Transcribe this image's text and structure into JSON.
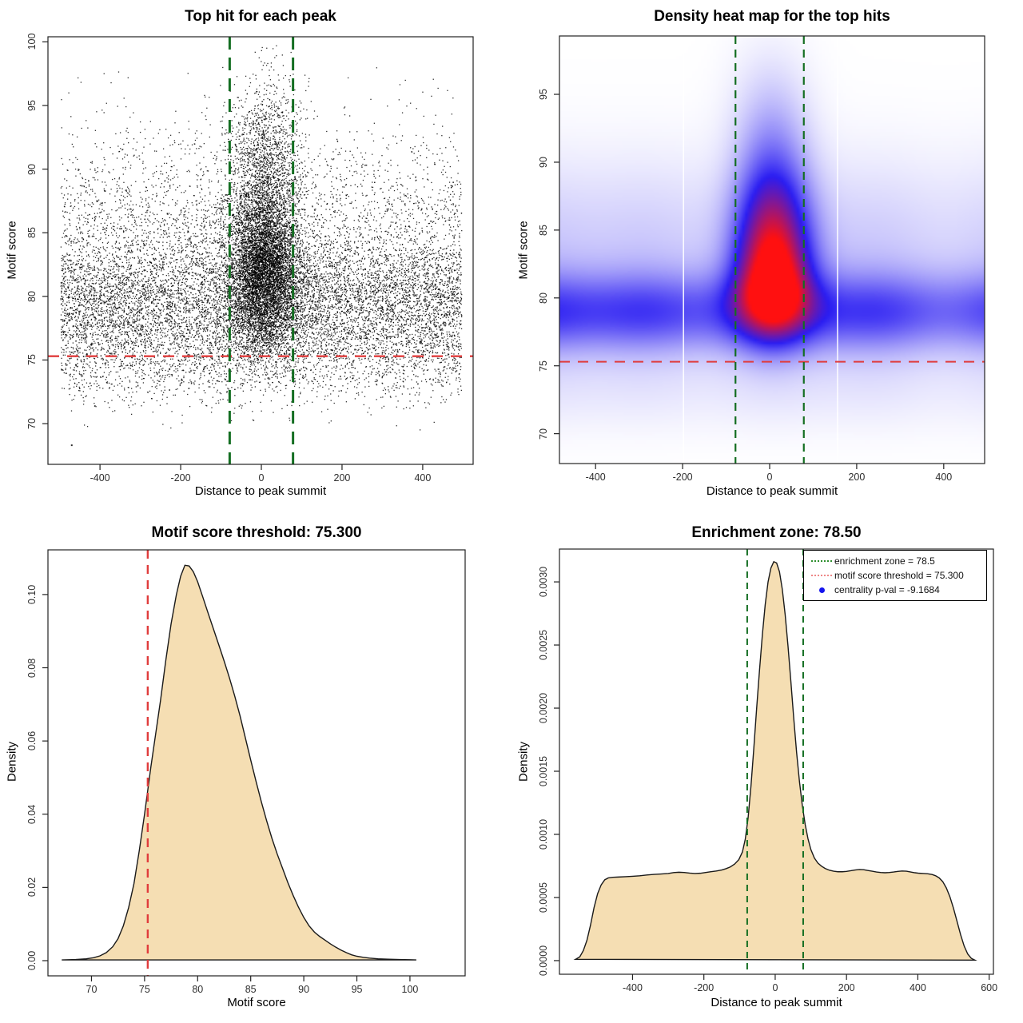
{
  "page": {
    "background": "#ffffff"
  },
  "colors": {
    "threshold_red": "#e03c3c",
    "enrichment_green": "#146e22",
    "density_fill": "#f5deb3",
    "curve_stroke": "#1a1a1a",
    "point_black": "#000000",
    "heat_white": "#ffffff",
    "heat_blue": "#2a1df2",
    "heat_red": "#ff1010"
  },
  "chart_data": [
    {
      "id": "top-hit-scatter",
      "type": "scatter",
      "title": "Top hit for each peak",
      "xlabel": "Distance to peak summit",
      "ylabel": "Motif score",
      "xlim": [
        -529,
        525
      ],
      "ylim": [
        66.8,
        100.4
      ],
      "xticks": [
        {
          "v": -400,
          "label": "-400"
        },
        {
          "v": -200,
          "label": "-200"
        },
        {
          "v": 0,
          "label": "0"
        },
        {
          "v": 200,
          "label": "200"
        },
        {
          "v": 400,
          "label": "400"
        }
      ],
      "yticks": [
        {
          "v": 70,
          "label": "70"
        },
        {
          "v": 75,
          "label": "75"
        },
        {
          "v": 80,
          "label": "80"
        },
        {
          "v": 85,
          "label": "85"
        },
        {
          "v": 90,
          "label": "90"
        },
        {
          "v": 95,
          "label": "95"
        },
        {
          "v": 100,
          "label": "100"
        }
      ],
      "ref_lines": [
        {
          "orient": "h",
          "value": 75.3,
          "color": "#e03c3c",
          "width": 2.4,
          "dash": [
            14,
            10
          ],
          "meaning": "motif score threshold = 75.300"
        },
        {
          "orient": "v",
          "value": -78.5,
          "color": "#146e22",
          "width": 3,
          "dash": [
            16,
            10
          ],
          "meaning": "enrichment zone = 78.5"
        },
        {
          "orient": "v",
          "value": 78.5,
          "color": "#146e22",
          "width": 3,
          "dash": [
            16,
            10
          ],
          "meaning": "enrichment zone = 78.5"
        }
      ],
      "points": {
        "seed": 42,
        "size": 1.3,
        "alpha": 0.82,
        "background": {
          "n": 12500,
          "x_uniform": [
            -497,
            497
          ],
          "y_mix": [
            {
              "w": 0.57,
              "mu": 79.2,
              "sd": 2.6
            },
            {
              "w": 0.27,
              "mu": 83.0,
              "sd": 4.0
            },
            {
              "w": 0.06,
              "mu": 88.5,
              "sd": 3.5
            },
            {
              "w": 0.1,
              "mu": 74.6,
              "sd": 1.7
            }
          ],
          "y_reject_below": 69.5,
          "y_reject_above": 99.3
        },
        "cluster": {
          "n": 8500,
          "x_normal": {
            "mu": 8,
            "sd": 45
          },
          "y_mix": [
            {
              "w": 0.66,
              "mu": 81.5,
              "sd": 3.0
            },
            {
              "w": 0.24,
              "mu": 86.0,
              "sd": 4.0
            },
            {
              "w": 0.1,
              "mu": 91.5,
              "sd": 3.2
            }
          ],
          "y_reject_below": 72.5,
          "y_reject_above": 99.8
        },
        "outliers": [
          [
            -470,
            68.3
          ]
        ]
      }
    },
    {
      "id": "top-hit-heatmap",
      "type": "density2d",
      "title": "Density heat map for the top hits",
      "xlabel": "Distance to peak summit",
      "ylabel": "Motif score",
      "xlim": [
        -483,
        494
      ],
      "ylim": [
        67.8,
        99.3
      ],
      "xticks": [
        {
          "v": -400,
          "label": "-400"
        },
        {
          "v": -200,
          "label": "-200"
        },
        {
          "v": 0,
          "label": "0"
        },
        {
          "v": 200,
          "label": "200"
        },
        {
          "v": 400,
          "label": "400"
        }
      ],
      "yticks": [
        {
          "v": 70,
          "label": "70"
        },
        {
          "v": 75,
          "label": "75"
        },
        {
          "v": 80,
          "label": "80"
        },
        {
          "v": 85,
          "label": "85"
        },
        {
          "v": 90,
          "label": "90"
        },
        {
          "v": 95,
          "label": "95"
        }
      ],
      "ref_lines": [
        {
          "orient": "h",
          "value": 75.3,
          "color": "#e03c3c",
          "width": 2,
          "dash": [
            13,
            10
          ],
          "meaning": "motif score threshold = 75.300"
        },
        {
          "orient": "v",
          "value": -78.5,
          "color": "#146e22",
          "width": 2.2,
          "dash": [
            10,
            7
          ],
          "meaning": "enrichment zone = 78.5"
        },
        {
          "orient": "v",
          "value": 78.5,
          "color": "#146e22",
          "width": 2.2,
          "dash": [
            10,
            7
          ],
          "meaning": "enrichment zone = 78.5"
        }
      ],
      "field": {
        "bands": [
          {
            "a": 0.52,
            "mu": 78.9,
            "sd": 2.0
          },
          {
            "a": 0.16,
            "mu": 83.5,
            "sd": 4.6
          },
          {
            "a": 0.07,
            "mu": 73.5,
            "sd": 2.3
          }
        ],
        "bandmod": [
          {
            "c": 0.1,
            "f": 97,
            "p": 0.3
          },
          {
            "c": 0.06,
            "f": 43,
            "p": 1.7
          },
          {
            "c": 0.05,
            "f": 160,
            "p": 2.6
          }
        ],
        "blobs": [
          {
            "a": 1.5,
            "cx": 8,
            "sx": 58,
            "cy": 81.2,
            "syUp": 4.4,
            "syDn": 2.6
          },
          {
            "a": 0.3,
            "cx": 5,
            "sx": 56,
            "cy": 88.5,
            "syUp": 3.8,
            "syDn": 3.0
          },
          {
            "a": 0.1,
            "cx": 2,
            "sx": 64,
            "cy": 94.0,
            "syUp": 3.5,
            "syDn": 3.0
          }
        ],
        "norm": 1.45,
        "white_gaps": [
          -198,
          156
        ]
      },
      "colormap": [
        "#ffffff",
        "#2a1df2",
        "#ff1010"
      ]
    },
    {
      "id": "motif-score-density",
      "type": "density",
      "title": "Motif score threshold: 75.300",
      "xlabel": "Motif score",
      "ylabel": "Density",
      "xlim": [
        65.9,
        105.2
      ],
      "ylim": [
        -0.00415,
        0.1122
      ],
      "xticks": [
        {
          "v": 70,
          "label": "70"
        },
        {
          "v": 75,
          "label": "75"
        },
        {
          "v": 80,
          "label": "80"
        },
        {
          "v": 85,
          "label": "85"
        },
        {
          "v": 90,
          "label": "90"
        },
        {
          "v": 95,
          "label": "95"
        },
        {
          "v": 100,
          "label": "100"
        }
      ],
      "yticks": [
        {
          "v": 0,
          "label": "0.00"
        },
        {
          "v": 0.02,
          "label": "0.02"
        },
        {
          "v": 0.04,
          "label": "0.04"
        },
        {
          "v": 0.06,
          "label": "0.06"
        },
        {
          "v": 0.08,
          "label": "0.08"
        },
        {
          "v": 0.1,
          "label": "0.10"
        }
      ],
      "fill": "#f5deb3",
      "stroke": "#1a1a1a",
      "ref_lines": [
        {
          "orient": "v",
          "value": 75.3,
          "color": "#e03c3c",
          "width": 2.4,
          "dash": [
            11,
            8
          ],
          "meaning": "motif score threshold = 75.300"
        }
      ],
      "curve": [
        [
          67.2,
          0.0002
        ],
        [
          68.5,
          0.0003
        ],
        [
          69.5,
          0.0005
        ],
        [
          70.2,
          0.0008
        ],
        [
          70.8,
          0.0013
        ],
        [
          71.4,
          0.0022
        ],
        [
          72.0,
          0.0038
        ],
        [
          72.5,
          0.006
        ],
        [
          73.0,
          0.0095
        ],
        [
          73.5,
          0.0145
        ],
        [
          74.0,
          0.021
        ],
        [
          74.5,
          0.03
        ],
        [
          75.0,
          0.04
        ],
        [
          75.3,
          0.0465
        ],
        [
          75.6,
          0.053
        ],
        [
          76.0,
          0.061
        ],
        [
          76.5,
          0.071
        ],
        [
          77.0,
          0.082
        ],
        [
          77.5,
          0.092
        ],
        [
          78.0,
          0.1
        ],
        [
          78.4,
          0.105
        ],
        [
          78.8,
          0.108
        ],
        [
          79.2,
          0.1078
        ],
        [
          79.6,
          0.1062
        ],
        [
          80.0,
          0.1035
        ],
        [
          80.5,
          0.0992
        ],
        [
          81.0,
          0.0948
        ],
        [
          81.5,
          0.0905
        ],
        [
          82.0,
          0.0862
        ],
        [
          82.5,
          0.0818
        ],
        [
          83.0,
          0.0772
        ],
        [
          83.5,
          0.0722
        ],
        [
          84.0,
          0.0668
        ],
        [
          84.5,
          0.0608
        ],
        [
          85.0,
          0.0548
        ],
        [
          85.5,
          0.049
        ],
        [
          86.0,
          0.0434
        ],
        [
          86.5,
          0.0382
        ],
        [
          87.0,
          0.0334
        ],
        [
          87.5,
          0.0291
        ],
        [
          88.0,
          0.0252
        ],
        [
          88.5,
          0.0213
        ],
        [
          89.0,
          0.0178
        ],
        [
          89.5,
          0.0146
        ],
        [
          90.0,
          0.0118
        ],
        [
          90.5,
          0.0095
        ],
        [
          91.0,
          0.0078
        ],
        [
          91.5,
          0.0066
        ],
        [
          92.0,
          0.0056
        ],
        [
          92.5,
          0.0046
        ],
        [
          93.0,
          0.0037
        ],
        [
          93.5,
          0.0029
        ],
        [
          94.0,
          0.0022
        ],
        [
          94.5,
          0.0016
        ],
        [
          95.0,
          0.0012
        ],
        [
          95.6,
          0.0009
        ],
        [
          96.2,
          0.0007
        ],
        [
          97.0,
          0.0005
        ],
        [
          98.0,
          0.0004
        ],
        [
          99.0,
          0.0003
        ],
        [
          100.0,
          0.00025
        ],
        [
          100.6,
          0.0002
        ]
      ]
    },
    {
      "id": "distance-density",
      "type": "density",
      "title": "Enrichment zone: 78.50",
      "xlabel": "Distance to peak summit",
      "ylabel": "Density",
      "xlim": [
        -605,
        612
      ],
      "ylim": [
        -0.000108,
        0.00326
      ],
      "xticks": [
        {
          "v": -400,
          "label": "-400"
        },
        {
          "v": -200,
          "label": "-200"
        },
        {
          "v": 0,
          "label": "0"
        },
        {
          "v": 200,
          "label": "200"
        },
        {
          "v": 400,
          "label": "400"
        },
        {
          "v": 600,
          "label": "600"
        }
      ],
      "yticks": [
        {
          "v": 0,
          "label": "0.0000"
        },
        {
          "v": 0.0005,
          "label": "0.0005"
        },
        {
          "v": 0.001,
          "label": "0.0010"
        },
        {
          "v": 0.0015,
          "label": "0.0015"
        },
        {
          "v": 0.002,
          "label": "0.0020"
        },
        {
          "v": 0.0025,
          "label": "0.0025"
        },
        {
          "v": 0.003,
          "label": "0.0030"
        }
      ],
      "fill": "#f5deb3",
      "stroke": "#1a1a1a",
      "ref_lines": [
        {
          "orient": "v",
          "value": -78.5,
          "color": "#146e22",
          "width": 2,
          "dash": [
            8,
            6
          ],
          "meaning": "enrichment zone = 78.5"
        },
        {
          "orient": "v",
          "value": 78.5,
          "color": "#146e22",
          "width": 2,
          "dash": [
            8,
            6
          ],
          "meaning": "enrichment zone = 78.5"
        }
      ],
      "curve": [
        [
          -560,
          1e-05
        ],
        [
          -548,
          3e-05
        ],
        [
          -538,
          8e-05
        ],
        [
          -528,
          0.00016
        ],
        [
          -518,
          0.00028
        ],
        [
          -508,
          0.00042
        ],
        [
          -498,
          0.00053
        ],
        [
          -488,
          0.0006
        ],
        [
          -478,
          0.00064
        ],
        [
          -468,
          0.000655
        ],
        [
          -455,
          0.00066
        ],
        [
          -440,
          0.000662
        ],
        [
          -420,
          0.000665
        ],
        [
          -400,
          0.000668
        ],
        [
          -380,
          0.000672
        ],
        [
          -360,
          0.000678
        ],
        [
          -340,
          0.000683
        ],
        [
          -320,
          0.000686
        ],
        [
          -300,
          0.00069
        ],
        [
          -285,
          0.000697
        ],
        [
          -270,
          0.0007
        ],
        [
          -255,
          0.000698
        ],
        [
          -240,
          0.000693
        ],
        [
          -225,
          0.00069
        ],
        [
          -210,
          0.000692
        ],
        [
          -195,
          0.000698
        ],
        [
          -180,
          0.000704
        ],
        [
          -165,
          0.00071
        ],
        [
          -150,
          0.000718
        ],
        [
          -138,
          0.000728
        ],
        [
          -126,
          0.000742
        ],
        [
          -114,
          0.000764
        ],
        [
          -102,
          0.0008
        ],
        [
          -92,
          0.00086
        ],
        [
          -84,
          0.00096
        ],
        [
          -76,
          0.00113
        ],
        [
          -68,
          0.00138
        ],
        [
          -60,
          0.00168
        ],
        [
          -52,
          0.002
        ],
        [
          -44,
          0.0023
        ],
        [
          -36,
          0.00258
        ],
        [
          -28,
          0.00282
        ],
        [
          -20,
          0.003
        ],
        [
          -12,
          0.00311
        ],
        [
          -4,
          0.00316
        ],
        [
          4,
          0.00315
        ],
        [
          12,
          0.00308
        ],
        [
          20,
          0.00294
        ],
        [
          28,
          0.00274
        ],
        [
          36,
          0.00249
        ],
        [
          44,
          0.00221
        ],
        [
          52,
          0.00192
        ],
        [
          60,
          0.00165
        ],
        [
          68,
          0.00142
        ],
        [
          76,
          0.00123
        ],
        [
          84,
          0.00108
        ],
        [
          92,
          0.000965
        ],
        [
          100,
          0.00088
        ],
        [
          110,
          0.000812
        ],
        [
          120,
          0.000772
        ],
        [
          130,
          0.000748
        ],
        [
          140,
          0.00073
        ],
        [
          152,
          0.000716
        ],
        [
          164,
          0.000708
        ],
        [
          176,
          0.000704
        ],
        [
          188,
          0.000704
        ],
        [
          200,
          0.000707
        ],
        [
          212,
          0.000712
        ],
        [
          224,
          0.000718
        ],
        [
          236,
          0.000722
        ],
        [
          248,
          0.00072
        ],
        [
          260,
          0.000714
        ],
        [
          272,
          0.000708
        ],
        [
          284,
          0.000702
        ],
        [
          296,
          0.000698
        ],
        [
          308,
          0.000696
        ],
        [
          320,
          0.000698
        ],
        [
          332,
          0.000702
        ],
        [
          344,
          0.000707
        ],
        [
          356,
          0.00071
        ],
        [
          368,
          0.000708
        ],
        [
          380,
          0.000702
        ],
        [
          392,
          0.000696
        ],
        [
          404,
          0.000692
        ],
        [
          416,
          0.00069
        ],
        [
          428,
          0.000688
        ],
        [
          440,
          0.000682
        ],
        [
          450,
          0.000672
        ],
        [
          460,
          0.000655
        ],
        [
          470,
          0.000625
        ],
        [
          480,
          0.000575
        ],
        [
          490,
          0.000505
        ],
        [
          500,
          0.000415
        ],
        [
          510,
          0.00031
        ],
        [
          520,
          0.000205
        ],
        [
          530,
          0.000115
        ],
        [
          540,
          5.2e-05
        ],
        [
          550,
          1.8e-05
        ],
        [
          560,
          4e-06
        ]
      ],
      "legend": {
        "position": "topright",
        "items": [
          {
            "symbol": "dotted-line",
            "color": "#2f8f2f",
            "label": "enrichment zone = 78.5"
          },
          {
            "symbol": "dotted-line",
            "color": "#ee8888",
            "label": "motif score threshold = 75.300"
          },
          {
            "symbol": "dot",
            "color": "#1414ee",
            "label": "centrality p-val = -9.1684"
          }
        ]
      }
    }
  ]
}
